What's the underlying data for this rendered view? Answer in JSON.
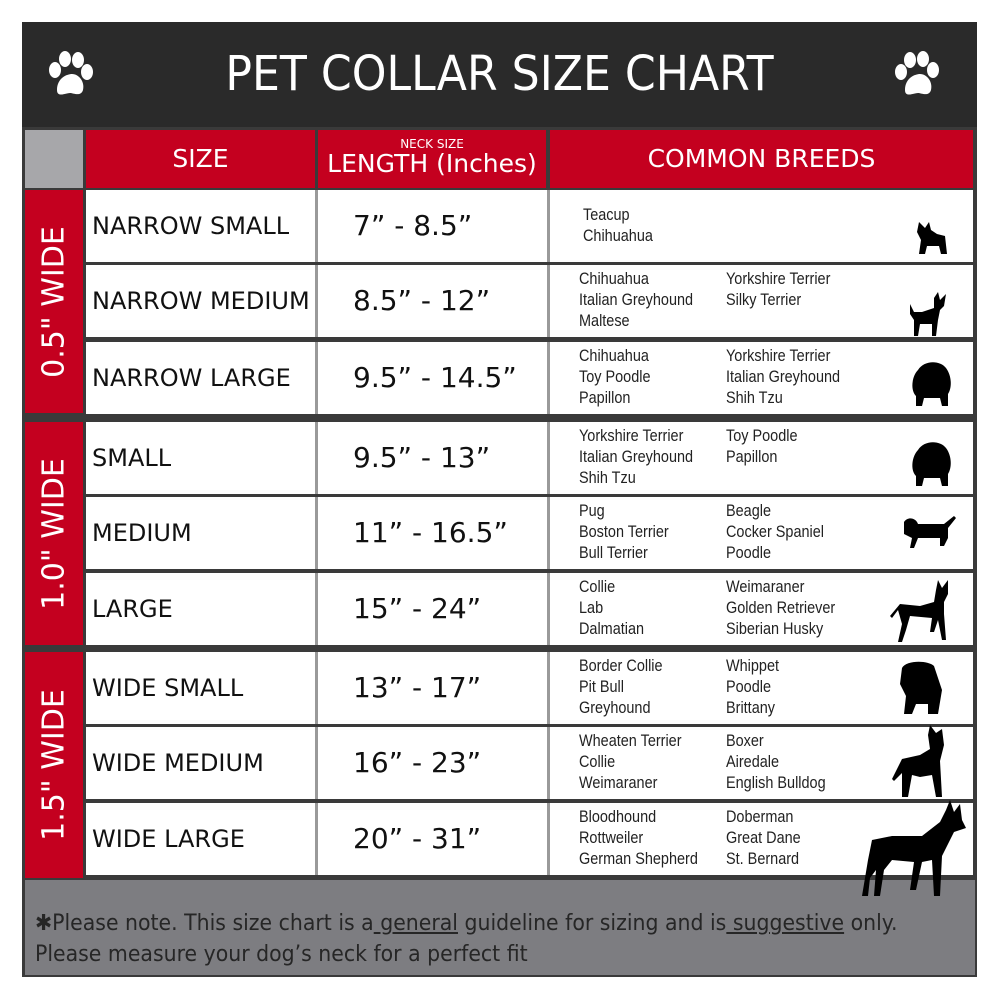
{
  "title": "PET COLLAR SIZE CHART",
  "headers": {
    "size": "SIZE",
    "neck_size": "NECK SIZE",
    "length": "LENGTH (Inches)",
    "breeds": "COMMON BREEDS"
  },
  "groups": [
    {
      "label": "0.5\" WIDE"
    },
    {
      "label": "1.0\" WIDE"
    },
    {
      "label": "1.5\" WIDE"
    }
  ],
  "rows": [
    {
      "size": "NARROW SMALL",
      "length": "7” - 8.5”",
      "col1": [
        "Teacup",
        "Chihuahua"
      ],
      "col2": [],
      "dog": "yorkie-icon"
    },
    {
      "size": "NARROW MEDIUM",
      "length": "8.5” - 12”",
      "col1": [
        "Chihuahua",
        "Italian Greyhound",
        "Maltese"
      ],
      "col2": [
        "Yorkshire Terrier",
        "Silky Terrier"
      ],
      "dog": "chihuahua-icon"
    },
    {
      "size": "NARROW LARGE",
      "length": "9.5” - 14.5”",
      "col1": [
        "Chihuahua",
        "Toy Poodle",
        "Papillon"
      ],
      "col2": [
        "Yorkshire Terrier",
        "Italian Greyhound",
        "Shih Tzu"
      ],
      "dog": "pomeranian-icon"
    },
    {
      "size": "SMALL",
      "length": "9.5” - 13”",
      "col1": [
        "Yorkshire Terrier",
        "Italian Greyhound",
        "Shih Tzu"
      ],
      "col2": [
        "Toy Poodle",
        "Papillon"
      ],
      "dog": "pomeranian-icon"
    },
    {
      "size": "MEDIUM",
      "length": "11” - 16.5”",
      "col1": [
        "Pug",
        "Boston Terrier",
        "Bull Terrier"
      ],
      "col2": [
        "Beagle",
        "Cocker Spaniel",
        "Poodle"
      ],
      "dog": "dachshund-icon"
    },
    {
      "size": "LARGE",
      "length": "15” - 24”",
      "col1": [
        "Collie",
        "Lab",
        "Dalmatian"
      ],
      "col2": [
        "Weimaraner",
        "Golden Retriever",
        "Siberian Husky"
      ],
      "dog": "shepherd-icon"
    },
    {
      "size": "WIDE SMALL",
      "length": "13” - 17”",
      "col1": [
        "Border Collie",
        "Pit Bull",
        "Greyhound"
      ],
      "col2": [
        "Whippet",
        "Poodle",
        "Brittany"
      ],
      "dog": "bulldog-icon"
    },
    {
      "size": "WIDE MEDIUM",
      "length": "16” - 23”",
      "col1": [
        "Wheaten Terrier",
        "Collie",
        "Weimaraner"
      ],
      "col2": [
        "Boxer",
        "Airedale",
        "English Bulldog"
      ],
      "dog": "pitbull-icon"
    },
    {
      "size": "WIDE LARGE",
      "length": "20” - 31”",
      "col1": [
        "Bloodhound",
        "Rottweiler",
        "German Shepherd"
      ],
      "col2": [
        "Doberman",
        "Great Dane",
        "St. Bernard"
      ],
      "dog": "doberman-icon"
    }
  ],
  "footer": {
    "part1": "✱Please note. This size chart is a",
    "general": " general",
    "part2": " guideline for sizing and is",
    "suggestive": " suggestive",
    "part3": " only.",
    "line2": "Please measure your dog’s neck for a perfect fit"
  },
  "colors": {
    "header_bg": "#2a2a2a",
    "accent_red": "#c4001f",
    "footer_bg": "#7d7d81"
  }
}
